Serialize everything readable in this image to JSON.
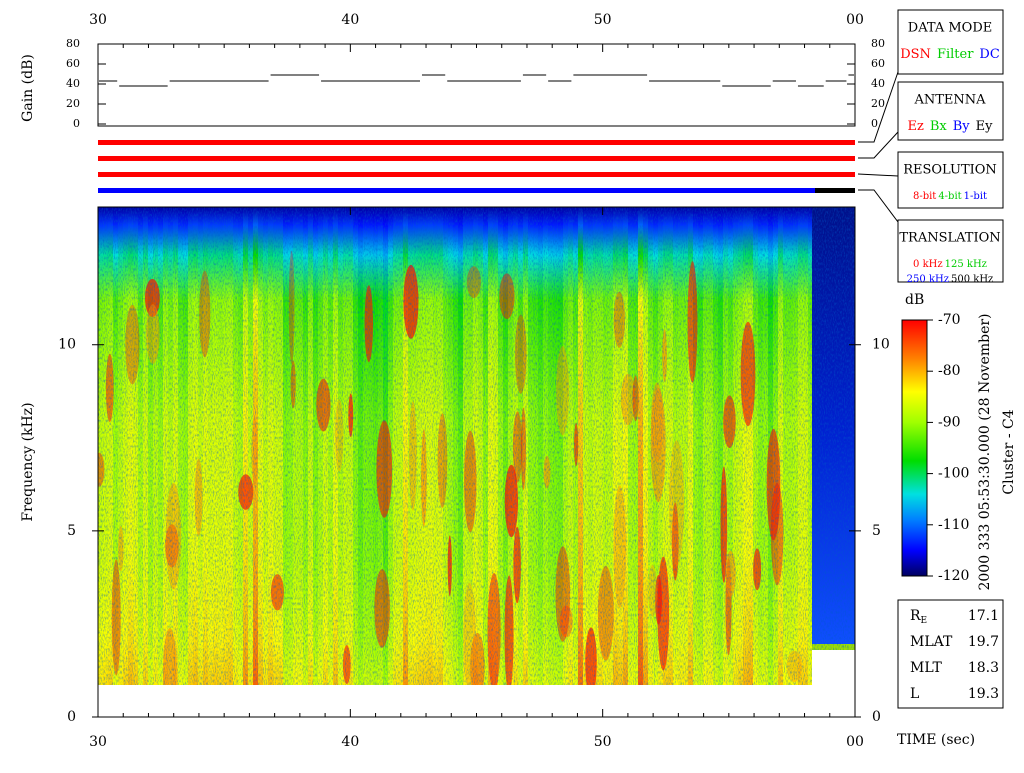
{
  "chart_data": [
    {
      "type": "step",
      "y_label": "Gain (dB)",
      "xlim": [
        30,
        60
      ],
      "xticks": [
        {
          "value": 30,
          "label": "30"
        },
        40,
        50,
        {
          "value": 60,
          "label": "00"
        }
      ],
      "xticks_minor": [
        31,
        32,
        33,
        34,
        35,
        36,
        37,
        38,
        39,
        41,
        42,
        43,
        44,
        45,
        46,
        47,
        48,
        49,
        51,
        52,
        53,
        54,
        55,
        56,
        57,
        58,
        59
      ],
      "ylim": [
        0,
        80
      ],
      "yticks": [
        0,
        20,
        40,
        60,
        80
      ],
      "x": [
        30,
        30.8,
        32.8,
        36.8,
        38.8,
        42.8,
        43.8,
        46.8,
        47.8,
        48.8,
        51.8,
        54.7,
        56.7,
        57.7,
        58.8,
        59.7
      ],
      "values": [
        43,
        38,
        43,
        49,
        43,
        49,
        43,
        49,
        43,
        49,
        43,
        38,
        43,
        38,
        43,
        49
      ],
      "color": "#000000"
    },
    {
      "type": "spectrogram",
      "y_label": "Frequency (kHz)",
      "x_label": "TIME (sec)",
      "xlim": [
        30,
        60
      ],
      "xticks": [
        {
          "value": 30,
          "label": "30"
        },
        40,
        50,
        {
          "value": 60,
          "label": "00"
        }
      ],
      "xticks_minor": [
        31,
        32,
        33,
        34,
        35,
        36,
        37,
        38,
        39,
        41,
        42,
        43,
        44,
        45,
        46,
        47,
        48,
        49,
        51,
        52,
        53,
        54,
        55,
        56,
        57,
        58,
        59
      ],
      "ylim": [
        0,
        13.7
      ],
      "yticks": [
        0,
        5,
        10
      ],
      "colorbar": {
        "label": "dB",
        "lim": [
          -120,
          -70
        ],
        "ticks": [
          -70,
          -80,
          -90,
          -100,
          -110,
          -120
        ]
      },
      "annotations": [
        "2000 333 05:53:30.000 (28 November)",
        "Cluster - C4"
      ]
    }
  ],
  "legends": [
    {
      "title": "DATA MODE",
      "items": [
        {
          "text": "DSN",
          "color": "#ff0000"
        },
        {
          "text": "Filter",
          "color": "#00cc00"
        },
        {
          "text": "DC",
          "color": "#0000ff"
        }
      ]
    },
    {
      "title": "ANTENNA",
      "items": [
        {
          "text": "Ez",
          "color": "#ff0000"
        },
        {
          "text": "Bx",
          "color": "#00cc00"
        },
        {
          "text": "By",
          "color": "#0000ff"
        },
        {
          "text": "Ey",
          "color": "#000000"
        }
      ]
    },
    {
      "title": "RESOLUTION",
      "items": [
        {
          "text": "8-bit",
          "color": "#ff0000"
        },
        {
          "text": "4-bit",
          "color": "#00cc00"
        },
        {
          "text": "1-bit",
          "color": "#0000ff"
        }
      ]
    },
    {
      "title": "TRANSLATION",
      "items": [
        {
          "text": "0 kHz",
          "color": "#ff0000"
        },
        {
          "text": "125 kHz",
          "color": "#00cc00"
        },
        {
          "text": "250 kHz",
          "color": "#0000ff"
        },
        {
          "text": "500 kHz",
          "color": "#000000"
        }
      ]
    }
  ],
  "orbit_info": [
    {
      "label": "R",
      "sub": "E",
      "value": 17.1
    },
    {
      "label": "MLAT",
      "value": 19.7
    },
    {
      "label": "MLT",
      "value": 18.3
    },
    {
      "label": "L",
      "value": 19.3
    }
  ]
}
